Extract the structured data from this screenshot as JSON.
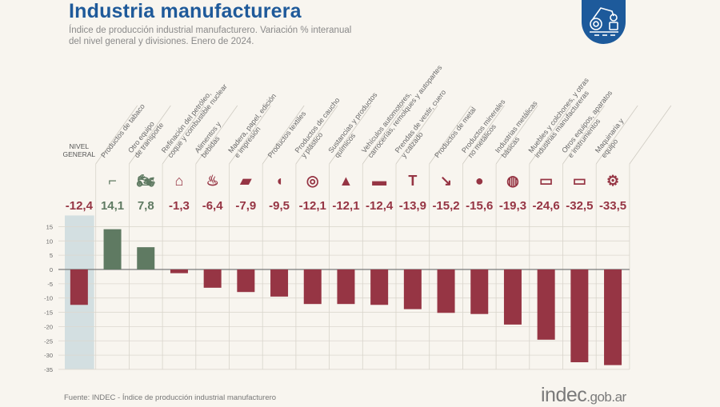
{
  "header": {
    "title": "Industria manufacturera",
    "subtitle_line1": "Índice de producción industrial manufacturero. Variación % interanual",
    "subtitle_line2": "del nivel general y divisiones. Enero de 2024.",
    "badge_icon": "robot-arm-icon"
  },
  "footer": {
    "source": "Fuente: INDEC - Índice de producción industrial manufacturero",
    "logo_main": "indec",
    "logo_domain": ".gob.ar"
  },
  "colors": {
    "title": "#1f5a9a",
    "positive": "#5f7a62",
    "negative": "#963544",
    "highlight_band": "#d3dfe1",
    "badge": "#1d5a9b"
  },
  "chart_data": {
    "type": "bar",
    "title": "Industria manufacturera",
    "xlabel": "",
    "ylabel": "Variación % interanual",
    "ylim": [
      -35,
      15
    ],
    "yticks": [
      15,
      10,
      5,
      0,
      -5,
      -10,
      -15,
      -20,
      -25,
      -30,
      -35
    ],
    "grid": true,
    "categories": [
      {
        "label": [
          "NIVEL",
          "GENERAL"
        ],
        "value": -12.4,
        "value_label": "-12,4",
        "icon": "none",
        "highlight": true
      },
      {
        "label": [
          "Productos de tabaco"
        ],
        "value": 14.1,
        "value_label": "14,1",
        "icon": "pipe-icon"
      },
      {
        "label": [
          "Otro equipo",
          "de transporte"
        ],
        "value": 7.8,
        "value_label": "7,8",
        "icon": "motorcycle-icon"
      },
      {
        "label": [
          "Refinación del petróleo,",
          "coque y combustible nuclear"
        ],
        "value": -1.3,
        "value_label": "-1,3",
        "icon": "refinery-icon"
      },
      {
        "label": [
          "Alimentos y",
          "bebidas"
        ],
        "value": -6.4,
        "value_label": "-6,4",
        "icon": "bottle-bread-icon"
      },
      {
        "label": [
          "Madera, papel, edición",
          "e impresión"
        ],
        "value": -7.9,
        "value_label": "-7,9",
        "icon": "paper-wood-icon"
      },
      {
        "label": [
          "Productos textiles"
        ],
        "value": -9.5,
        "value_label": "-9,5",
        "icon": "thread-spool-icon"
      },
      {
        "label": [
          "Productos de caucho",
          "y plástico"
        ],
        "value": -12.1,
        "value_label": "-12,1",
        "icon": "tire-icon"
      },
      {
        "label": [
          "Sustancias y productos",
          "químicos"
        ],
        "value": -12.1,
        "value_label": "-12,1",
        "icon": "flask-icon"
      },
      {
        "label": [
          "Vehículos automotores,",
          "carrocerías, remolques y autopartes"
        ],
        "value": -12.4,
        "value_label": "-12,4",
        "icon": "car-icon"
      },
      {
        "label": [
          "Prendas de vestir, cuero",
          "y calzado"
        ],
        "value": -13.9,
        "value_label": "-13,9",
        "icon": "shirt-icon"
      },
      {
        "label": [
          "Productos de metal"
        ],
        "value": -15.2,
        "value_label": "-15,2",
        "icon": "bolt-icon"
      },
      {
        "label": [
          "Productos minerales",
          "no metálicos"
        ],
        "value": -15.6,
        "value_label": "-15,6",
        "icon": "cement-mixer-icon"
      },
      {
        "label": [
          "Industrias metálicas",
          "básicas"
        ],
        "value": -19.3,
        "value_label": "-19,3",
        "icon": "metal-coil-icon"
      },
      {
        "label": [
          "Muebles y colchones, y otras",
          "industrias manufactureras"
        ],
        "value": -24.6,
        "value_label": "-24,6",
        "icon": "furniture-icon"
      },
      {
        "label": [
          "Otros equipos, aparatos",
          "e instrumentos"
        ],
        "value": -32.5,
        "value_label": "-32,5",
        "icon": "laptop-icon"
      },
      {
        "label": [
          "Maquinaria y",
          "equipo"
        ],
        "value": -33.5,
        "value_label": "-33,5",
        "icon": "tractor-icon"
      }
    ]
  }
}
